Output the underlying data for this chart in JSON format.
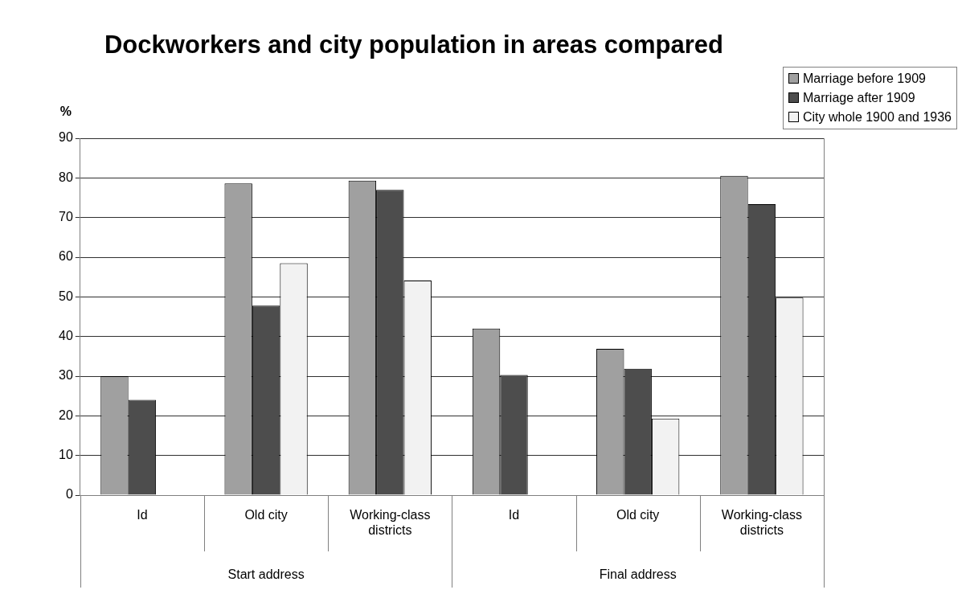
{
  "chart_data": {
    "type": "bar",
    "title": "Dockworkers and city population in areas compared",
    "ylabel": "%",
    "categories": [
      "Id",
      "Old city",
      "Working-class districts",
      "Id",
      "Old city",
      "Working-class districts"
    ],
    "annotations": [
      "Start address",
      "Final address"
    ],
    "series": [
      {
        "name": "Marriage before 1909",
        "color": "#a0a0a0",
        "values": [
          30,
          78.6,
          79.3,
          42,
          36.9,
          80.5
        ]
      },
      {
        "name": "Marriage after 1909",
        "color": "#4d4d4d",
        "values": [
          24,
          47.8,
          77,
          30.3,
          31.9,
          73.4
        ]
      },
      {
        "name": "City whole 1900 and 1936",
        "color": "#f2f2f2",
        "values": [
          null,
          58.5,
          54.1,
          null,
          19.3,
          49.8
        ]
      }
    ],
    "ylim": [
      0,
      90
    ],
    "yticks": [
      0,
      10,
      20,
      30,
      40,
      50,
      60,
      70,
      80,
      90
    ],
    "grid": "y",
    "legend": "top right"
  }
}
